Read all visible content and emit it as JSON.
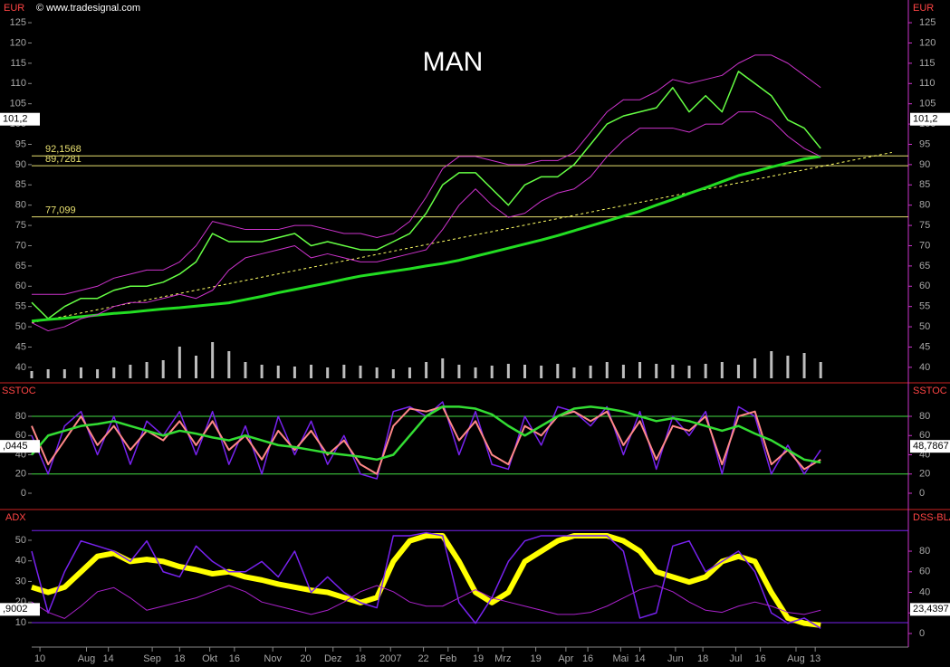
{
  "chart_data": [
    {
      "type": "line",
      "title": "MAN",
      "source": "© www.tradesignal.com",
      "y_label": "EUR",
      "ylim": [
        36.4,
        130.6
      ],
      "yticks": [
        40,
        45,
        50,
        55,
        60,
        65,
        70,
        75,
        80,
        85,
        90,
        95,
        100,
        105,
        110,
        115,
        120,
        125
      ],
      "xlim": [
        0,
        320
      ],
      "xticks": [
        {
          "value": 3,
          "label": "10"
        },
        {
          "value": 20,
          "label": "Aug"
        },
        {
          "value": 28,
          "label": "14"
        },
        {
          "value": 44,
          "label": "Sep"
        },
        {
          "value": 54,
          "label": "18"
        },
        {
          "value": 65,
          "label": "Okt"
        },
        {
          "value": 74,
          "label": "16"
        },
        {
          "value": 88,
          "label": "Nov"
        },
        {
          "value": 100,
          "label": "20"
        },
        {
          "value": 110,
          "label": "Dez"
        },
        {
          "value": 120,
          "label": "18"
        },
        {
          "value": 131,
          "label": "2007"
        },
        {
          "value": 143,
          "label": "22"
        },
        {
          "value": 152,
          "label": "Feb"
        },
        {
          "value": 163,
          "label": "19"
        },
        {
          "value": 172,
          "label": "Mrz"
        },
        {
          "value": 184,
          "label": "19"
        },
        {
          "value": 195,
          "label": "Apr"
        },
        {
          "value": 203,
          "label": "16"
        },
        {
          "value": 215,
          "label": "Mai"
        },
        {
          "value": 222,
          "label": "14"
        },
        {
          "value": 235,
          "label": "Jun"
        },
        {
          "value": 245,
          "label": "18"
        },
        {
          "value": 257,
          "label": "Jul"
        },
        {
          "value": 266,
          "label": "16"
        },
        {
          "value": 279,
          "label": "Aug"
        },
        {
          "value": 286,
          "label": "13"
        }
      ],
      "x": [
        0,
        6,
        12,
        18,
        24,
        30,
        36,
        42,
        48,
        54,
        60,
        66,
        72,
        78,
        84,
        90,
        96,
        102,
        108,
        114,
        120,
        126,
        132,
        138,
        144,
        150,
        156,
        162,
        168,
        174,
        180,
        186,
        192,
        198,
        204,
        210,
        216,
        222,
        228,
        234,
        240,
        246,
        252,
        258,
        264,
        270,
        276,
        282,
        288
      ],
      "current_value": 101.2,
      "current_value_label": "101,2",
      "series": [
        {
          "color": "#66ff44",
          "width": 1.5,
          "values": [
            56,
            52,
            55,
            57,
            57,
            59,
            60,
            60,
            61,
            63,
            66,
            73,
            71,
            71,
            71,
            72,
            73,
            70,
            71,
            70,
            69,
            69,
            71,
            73,
            78,
            85,
            88,
            88,
            84,
            80,
            85,
            87,
            87,
            90,
            95,
            100,
            102,
            103,
            104,
            109,
            103,
            107,
            103,
            113,
            110,
            107,
            101,
            99,
            94
          ]
        },
        {
          "color": "#22dd22",
          "width": 3,
          "values": [
            51.4,
            51.8,
            52.1,
            52.5,
            52.9,
            53.3,
            53.6,
            54.0,
            54.4,
            54.7,
            55.1,
            55.5,
            55.9,
            56.7,
            57.5,
            58.4,
            59.2,
            60.0,
            60.8,
            61.7,
            62.5,
            63.1,
            63.7,
            64.3,
            65.0,
            65.6,
            66.4,
            67.4,
            68.4,
            69.4,
            70.4,
            71.4,
            72.5,
            73.7,
            74.9,
            76.1,
            77.3,
            78.5,
            80.0,
            81.4,
            82.9,
            84.3,
            85.8,
            87.3,
            88.3,
            89.4,
            90.4,
            91.4,
            92.0
          ]
        },
        {
          "color": "#cc33cc",
          "width": 1,
          "values": [
            58,
            58,
            58,
            59,
            60,
            62,
            63,
            64,
            64,
            66,
            70,
            76,
            75,
            74,
            74,
            74,
            75,
            75,
            74,
            73,
            73,
            72,
            73,
            76,
            82,
            89,
            92,
            92,
            91,
            90,
            90,
            91,
            91,
            93,
            98,
            103,
            106,
            106,
            108,
            111,
            110,
            111,
            112,
            115,
            117,
            117,
            115,
            112,
            109
          ]
        },
        {
          "color": "#cc33cc",
          "width": 1,
          "values": [
            51,
            49,
            50,
            52,
            53,
            55,
            56,
            56,
            57,
            58,
            57,
            59,
            64,
            67,
            68,
            69,
            70,
            67,
            68,
            67,
            66,
            66,
            67,
            68,
            69,
            74,
            80,
            84,
            80,
            77,
            78,
            81,
            83,
            84,
            87,
            92,
            96,
            99,
            99,
            99,
            98,
            100,
            100,
            103,
            103,
            101,
            97,
            94,
            92
          ]
        }
      ],
      "trendline": {
        "color": "#ffff66",
        "x": [
          0,
          314
        ],
        "values": [
          51,
          93
        ]
      },
      "levels": [
        {
          "value": 92.1568,
          "label": "92,1568"
        },
        {
          "value": 89.7281,
          "label": "89,7281"
        },
        {
          "value": 77.099,
          "label": "77,099"
        }
      ],
      "level_color": "#e8e070",
      "volume_color": "#bdbdbd",
      "volume": [
        8,
        10,
        10,
        12,
        10,
        12,
        15,
        18,
        20,
        35,
        25,
        40,
        30,
        18,
        15,
        14,
        13,
        15,
        12,
        15,
        14,
        12,
        10,
        12,
        18,
        22,
        15,
        12,
        14,
        16,
        15,
        14,
        16,
        12,
        14,
        18,
        15,
        18,
        16,
        15,
        14,
        16,
        18,
        15,
        22,
        30,
        25,
        28,
        18
      ]
    },
    {
      "type": "line",
      "y_label": "SSTOC",
      "ylim": [
        -16,
        113.9
      ],
      "yticks": [
        0,
        20,
        40,
        60,
        80
      ],
      "x": [
        0,
        6,
        12,
        18,
        24,
        30,
        36,
        42,
        48,
        54,
        60,
        66,
        72,
        78,
        84,
        90,
        96,
        102,
        108,
        114,
        120,
        126,
        132,
        138,
        144,
        150,
        156,
        162,
        168,
        174,
        180,
        186,
        192,
        198,
        204,
        210,
        216,
        222,
        228,
        234,
        240,
        246,
        252,
        258,
        264,
        270,
        276,
        282,
        288
      ],
      "levels": [
        80,
        20
      ],
      "level_color": "#44dd44",
      "left_value_label": ",0445",
      "current_value": 48.7867,
      "current_value_label": "48,7867",
      "series": [
        {
          "color": "#7722ee",
          "width": 1.5,
          "values": [
            60,
            20,
            70,
            85,
            40,
            80,
            30,
            75,
            60,
            85,
            40,
            85,
            30,
            70,
            20,
            80,
            40,
            75,
            30,
            60,
            20,
            15,
            85,
            90,
            80,
            95,
            40,
            85,
            30,
            25,
            80,
            50,
            90,
            85,
            70,
            90,
            40,
            85,
            25,
            80,
            60,
            85,
            20,
            90,
            80,
            20,
            50,
            20,
            45
          ]
        },
        {
          "color": "#ff8888",
          "width": 2,
          "values": [
            70,
            30,
            55,
            80,
            50,
            70,
            45,
            65,
            55,
            75,
            50,
            75,
            45,
            60,
            35,
            65,
            45,
            65,
            40,
            55,
            30,
            20,
            70,
            88,
            85,
            90,
            55,
            75,
            40,
            30,
            70,
            60,
            80,
            85,
            75,
            85,
            50,
            75,
            35,
            70,
            65,
            80,
            30,
            80,
            85,
            30,
            45,
            25,
            35
          ]
        },
        {
          "color": "#33dd33",
          "width": 2.5,
          "values": [
            40,
            60,
            65,
            70,
            72,
            75,
            70,
            65,
            60,
            65,
            62,
            58,
            55,
            60,
            55,
            50,
            48,
            45,
            42,
            40,
            38,
            35,
            40,
            60,
            80,
            90,
            90,
            88,
            82,
            70,
            60,
            70,
            80,
            88,
            90,
            88,
            85,
            80,
            75,
            78,
            75,
            70,
            65,
            70,
            62,
            55,
            45,
            35,
            32
          ]
        }
      ]
    },
    {
      "type": "line",
      "y_label": "ADX",
      "y2_label": "DSS-BLA",
      "ylim": [
        -1.9,
        64.5
      ],
      "yticks": [
        10,
        20,
        30,
        40,
        50
      ],
      "y2lim": [
        -13.2,
        119.6
      ],
      "y2ticks": [
        0,
        20,
        40,
        60,
        80
      ],
      "x": [
        0,
        6,
        12,
        18,
        24,
        30,
        36,
        42,
        48,
        54,
        60,
        66,
        72,
        78,
        84,
        90,
        96,
        102,
        108,
        114,
        120,
        126,
        132,
        138,
        144,
        150,
        156,
        162,
        168,
        174,
        180,
        186,
        192,
        198,
        204,
        210,
        216,
        222,
        228,
        234,
        240,
        246,
        252,
        258,
        264,
        270,
        276,
        282,
        288
      ],
      "levels": [
        10
      ],
      "y2levels": [
        100
      ],
      "level_color": "#7722ee",
      "left_value_label": ",9002",
      "current_value": 23.4397,
      "current_value_label": "23,4397",
      "series": [
        {
          "color": "#ffff00",
          "width": 6,
          "axis": "y2",
          "values": [
            45,
            40,
            45,
            60,
            75,
            78,
            70,
            72,
            70,
            65,
            62,
            58,
            60,
            55,
            52,
            48,
            45,
            42,
            40,
            35,
            30,
            35,
            70,
            90,
            95,
            95,
            70,
            40,
            30,
            40,
            70,
            80,
            90,
            95,
            95,
            95,
            90,
            80,
            60,
            55,
            50,
            55,
            70,
            75,
            70,
            40,
            15,
            10,
            8
          ]
        },
        {
          "color": "#7722ee",
          "width": 1.5,
          "axis": "y2",
          "values": [
            80,
            20,
            60,
            90,
            85,
            80,
            70,
            90,
            60,
            55,
            85,
            70,
            60,
            60,
            70,
            55,
            80,
            40,
            55,
            40,
            30,
            25,
            95,
            95,
            98,
            95,
            30,
            10,
            35,
            70,
            90,
            95,
            95,
            95,
            95,
            95,
            80,
            15,
            20,
            85,
            90,
            60,
            70,
            80,
            60,
            20,
            10,
            15,
            5
          ]
        },
        {
          "color": "#aa22cc",
          "width": 1,
          "values": [
            20,
            15,
            12,
            18,
            25,
            27,
            22,
            16,
            18,
            20,
            22,
            25,
            28,
            25,
            20,
            18,
            16,
            14,
            16,
            20,
            25,
            28,
            25,
            20,
            18,
            18,
            22,
            26,
            22,
            20,
            18,
            16,
            14,
            14,
            15,
            18,
            22,
            26,
            28,
            25,
            20,
            16,
            15,
            18,
            20,
            18,
            15,
            14,
            16
          ]
        }
      ]
    }
  ]
}
